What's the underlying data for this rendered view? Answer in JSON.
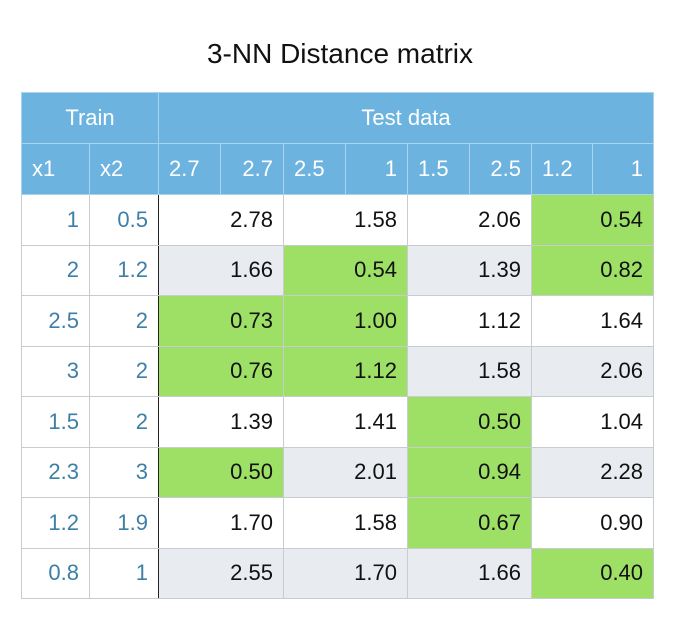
{
  "title": "3-NN Distance matrix",
  "header": {
    "train_label": "Train",
    "test_label": "Test data",
    "x1_label": "x1",
    "x2_label": "x2",
    "test_points": [
      {
        "a": "2.7",
        "b": "2.7"
      },
      {
        "a": "2.5",
        "b": "1"
      },
      {
        "a": "1.5",
        "b": "2.5"
      },
      {
        "a": "1.2",
        "b": "1"
      }
    ]
  },
  "rows": [
    {
      "x1": "1",
      "x2": "0.5",
      "d": [
        "2.78",
        "1.58",
        "2.06",
        "0.54"
      ]
    },
    {
      "x1": "2",
      "x2": "1.2",
      "d": [
        "1.66",
        "0.54",
        "1.39",
        "0.82"
      ]
    },
    {
      "x1": "2.5",
      "x2": "2",
      "d": [
        "0.73",
        "1.00",
        "1.12",
        "1.64"
      ]
    },
    {
      "x1": "3",
      "x2": "2",
      "d": [
        "0.76",
        "1.12",
        "1.58",
        "2.06"
      ]
    },
    {
      "x1": "1.5",
      "x2": "2",
      "d": [
        "1.39",
        "1.41",
        "0.50",
        "1.04"
      ]
    },
    {
      "x1": "2.3",
      "x2": "3",
      "d": [
        "0.50",
        "2.01",
        "0.94",
        "2.28"
      ]
    },
    {
      "x1": "1.2",
      "x2": "1.9",
      "d": [
        "1.70",
        "1.58",
        "0.67",
        "0.90"
      ]
    },
    {
      "x1": "0.8",
      "x2": "1",
      "d": [
        "2.55",
        "1.70",
        "1.66",
        "0.40"
      ]
    }
  ],
  "colors": {
    "header_bg": "#6db3e0",
    "header_text": "#ffffff",
    "train_text": "#3d7fa6",
    "nearest_highlight": "#9ee066",
    "stripe": "#e8ecf0"
  }
}
